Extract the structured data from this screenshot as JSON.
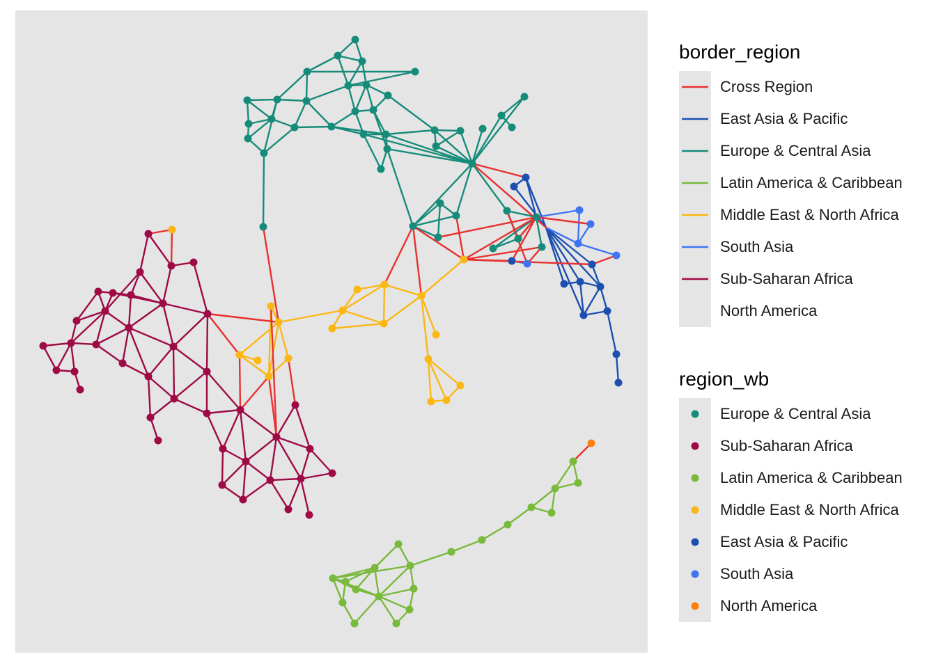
{
  "panel_background": "#e5e5e5",
  "legend_border": {
    "title": "border_region",
    "items": [
      {
        "label": "Cross Region",
        "color": "#e8302f"
      },
      {
        "label": "East Asia & Pacific",
        "color": "#1c4fb0"
      },
      {
        "label": "Europe & Central Asia",
        "color": "#168b7a"
      },
      {
        "label": "Latin America & Caribbean",
        "color": "#79b93c"
      },
      {
        "label": "Middle East & North Africa",
        "color": "#fbb713"
      },
      {
        "label": "South Asia",
        "color": "#3e74f2"
      },
      {
        "label": "Sub-Saharan Africa",
        "color": "#9e0a45"
      },
      {
        "label": "North America",
        "color": ""
      }
    ]
  },
  "legend_region": {
    "title": "region_wb",
    "items": [
      {
        "label": "Europe & Central Asia",
        "color": "#168b7a"
      },
      {
        "label": "Sub-Saharan Africa",
        "color": "#9e0a45"
      },
      {
        "label": "Latin America & Caribbean",
        "color": "#79b93c"
      },
      {
        "label": "Middle East & North Africa",
        "color": "#fbb713"
      },
      {
        "label": "East Asia & Pacific",
        "color": "#1c4fb0"
      },
      {
        "label": "South Asia",
        "color": "#3e74f2"
      },
      {
        "label": "North America",
        "color": "#ff7f0e"
      }
    ]
  }
}
